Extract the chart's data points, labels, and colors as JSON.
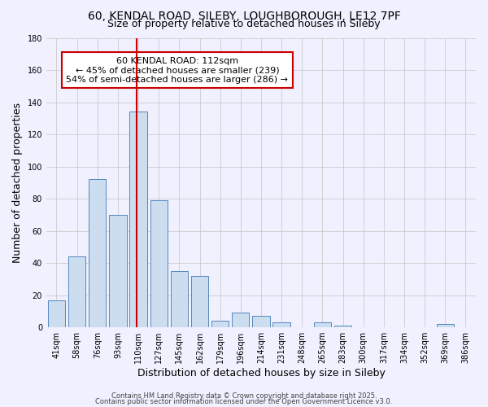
{
  "title": "60, KENDAL ROAD, SILEBY, LOUGHBOROUGH, LE12 7PF",
  "subtitle": "Size of property relative to detached houses in Sileby",
  "xlabel": "Distribution of detached houses by size in Sileby",
  "ylabel": "Number of detached properties",
  "bins": [
    "41sqm",
    "58sqm",
    "76sqm",
    "93sqm",
    "110sqm",
    "127sqm",
    "145sqm",
    "162sqm",
    "179sqm",
    "196sqm",
    "214sqm",
    "231sqm",
    "248sqm",
    "265sqm",
    "283sqm",
    "300sqm",
    "317sqm",
    "334sqm",
    "352sqm",
    "369sqm",
    "386sqm"
  ],
  "counts": [
    17,
    44,
    92,
    70,
    134,
    79,
    35,
    32,
    4,
    9,
    7,
    3,
    0,
    3,
    1,
    0,
    0,
    0,
    0,
    2,
    0
  ],
  "bar_color": "#ccddf0",
  "bar_edge_color": "#5588bb",
  "vline_color": "#cc0000",
  "vline_x_bin_index": 4,
  "ylim": [
    0,
    180
  ],
  "yticks": [
    0,
    20,
    40,
    60,
    80,
    100,
    120,
    140,
    160,
    180
  ],
  "grid_color": "#cccccc",
  "background_color": "#f0f0ff",
  "annotation_box_color": "#ffffff",
  "annotation_box_edge": "#cc0000",
  "property_label": "60 KENDAL ROAD: 112sqm",
  "annotation_line1": "← 45% of detached houses are smaller (239)",
  "annotation_line2": "54% of semi-detached houses are larger (286) →",
  "footer1": "Contains HM Land Registry data © Crown copyright and database right 2025.",
  "footer2": "Contains public sector information licensed under the Open Government Licence v3.0.",
  "title_fontsize": 10,
  "subtitle_fontsize": 9,
  "axis_label_fontsize": 9,
  "tick_fontsize": 7,
  "annotation_fontsize": 8,
  "footer_fontsize": 6
}
